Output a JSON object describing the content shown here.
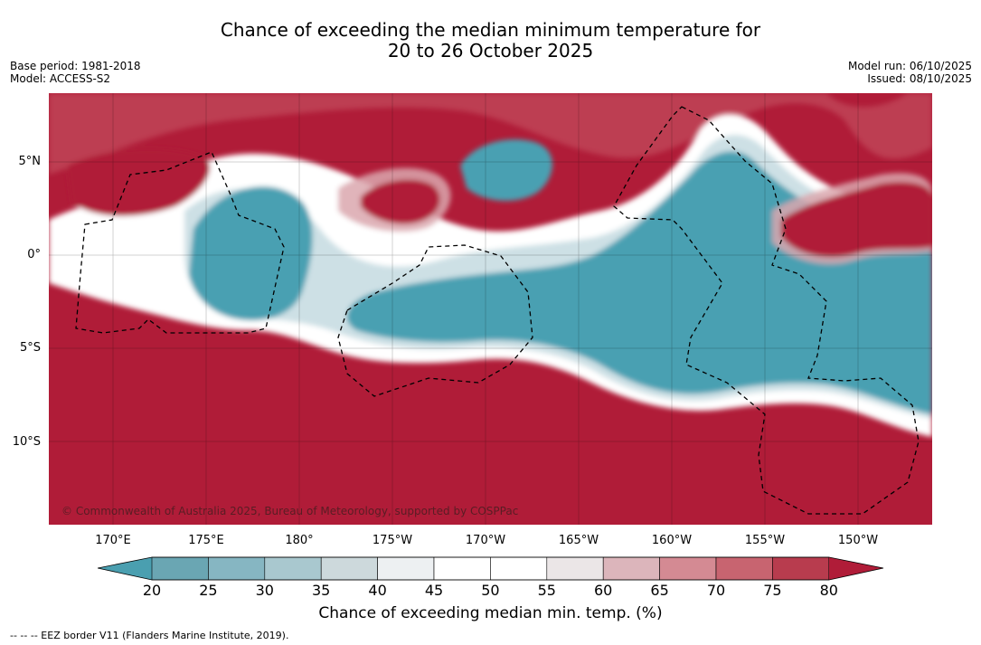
{
  "title_line1": "Chance of exceeding the median minimum temperature for",
  "title_line2": "20 to 26 October 2025",
  "base_period": "Base period: 1981-2018",
  "model": "Model: ACCESS-S2",
  "model_run": "Model run: 06/10/2025",
  "issued": "Issued: 08/10/2025",
  "lat_labels": [
    "5°N",
    "0°",
    "5°S",
    "10°S"
  ],
  "lon_labels": [
    "170°E",
    "175°E",
    "180°",
    "175°W",
    "170°W",
    "165°W",
    "160°W",
    "155°W",
    "150°W"
  ],
  "copyright": "© Commonwealth of Australia 2025, Bureau of Meteorology, supported by COSPPac",
  "colorbar": {
    "ticks": [
      "20",
      "25",
      "30",
      "35",
      "40",
      "45",
      "50",
      "55",
      "60",
      "65",
      "70",
      "75",
      "80"
    ],
    "label": "Chance of exceeding median min. temp. (%)",
    "colors": [
      "#6aa6b3",
      "#86b6c2",
      "#a9c8cf",
      "#cdd9dc",
      "#edf0f2",
      "#ffffff",
      "#ffffff",
      "#ebe6e7",
      "#dcb5bb",
      "#d48a93",
      "#c86470",
      "#b83c4e"
    ],
    "low_color": "#4a9fb0",
    "high_color": "#b01c38"
  },
  "map_colors": {
    "warm": "#b01c38",
    "warm_mid": "#c85a68",
    "warm_light": "#dba7ae",
    "neutral": "#ffffff",
    "cool_light": "#c8dde2",
    "cool": "#48a0b2"
  },
  "footer": "-- -- -- EEZ border V11 (Flanders Marine Institute, 2019)."
}
